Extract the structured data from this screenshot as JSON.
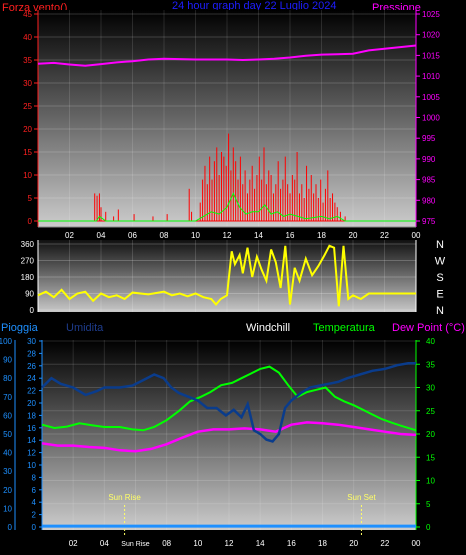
{
  "header": {
    "title": "24 hour graph day  22 Luglio 2024",
    "left_label": "Forza vento()",
    "right_label": "Pressione"
  },
  "colors": {
    "wind": "#ff0000",
    "gust": "#00ff00",
    "pressure": "#ff00ff",
    "direction": "#ffff00",
    "humidity": "#0a3c8c",
    "temperature": "#00ff00",
    "dewpoint": "#ff00ff",
    "rain": "#1e90ff",
    "title": "#1e1eff",
    "sun": "#ffff66"
  },
  "chart_data": [
    {
      "type": "line",
      "name": "wind-pressure",
      "x_range": [
        0,
        24
      ],
      "x_ticks": [
        "02",
        "04",
        "06",
        "08",
        "10",
        "12",
        "14",
        "16",
        "18",
        "20",
        "22",
        "00"
      ],
      "y_left": {
        "label": "Forza vento()",
        "range": [
          0,
          45
        ],
        "ticks": [
          0,
          5,
          10,
          15,
          20,
          25,
          30,
          35,
          40,
          45
        ]
      },
      "y_right": {
        "label": "Pressione",
        "range": [
          975,
          1025
        ],
        "ticks": [
          975,
          980,
          985,
          990,
          995,
          1000,
          1005,
          1010,
          1015,
          1020,
          1025
        ]
      },
      "pressure": [
        [
          0,
          1013
        ],
        [
          1,
          1013.2
        ],
        [
          2,
          1012.8
        ],
        [
          3,
          1012.5
        ],
        [
          4,
          1012.9
        ],
        [
          5,
          1013.3
        ],
        [
          6,
          1013.6
        ],
        [
          7,
          1014
        ],
        [
          8,
          1014.2
        ],
        [
          9,
          1014.1
        ],
        [
          10,
          1014
        ],
        [
          11,
          1014
        ],
        [
          12,
          1014
        ],
        [
          13,
          1013.9
        ],
        [
          14,
          1014
        ],
        [
          15,
          1014.2
        ],
        [
          16,
          1014.5
        ],
        [
          17,
          1014.9
        ],
        [
          18,
          1015.2
        ],
        [
          19,
          1015.3
        ],
        [
          20,
          1015.4
        ],
        [
          21,
          1016.2
        ],
        [
          22,
          1016.6
        ],
        [
          23,
          1017
        ],
        [
          24,
          1017.4
        ]
      ],
      "wind": [
        [
          3.6,
          6
        ],
        [
          3.75,
          5.5
        ],
        [
          3.9,
          6
        ],
        [
          4.0,
          3
        ],
        [
          4.3,
          2
        ],
        [
          4.8,
          1
        ],
        [
          5.1,
          2.5
        ],
        [
          6.1,
          1.5
        ],
        [
          7.3,
          1
        ],
        [
          8.2,
          1.5
        ],
        [
          9.6,
          7
        ],
        [
          9.75,
          2
        ],
        [
          10.3,
          4
        ],
        [
          10.45,
          9
        ],
        [
          10.6,
          12
        ],
        [
          10.75,
          8
        ],
        [
          10.9,
          14
        ],
        [
          11.05,
          9
        ],
        [
          11.2,
          13
        ],
        [
          11.35,
          16
        ],
        [
          11.5,
          10
        ],
        [
          11.65,
          15
        ],
        [
          11.8,
          14
        ],
        [
          11.95,
          12
        ],
        [
          12.1,
          19
        ],
        [
          12.25,
          11
        ],
        [
          12.4,
          16
        ],
        [
          12.55,
          13
        ],
        [
          12.7,
          9
        ],
        [
          12.85,
          14
        ],
        [
          13.0,
          8
        ],
        [
          13.15,
          11
        ],
        [
          13.3,
          6
        ],
        [
          13.45,
          9
        ],
        [
          13.6,
          12
        ],
        [
          13.75,
          7
        ],
        [
          13.9,
          10
        ],
        [
          14.05,
          14
        ],
        [
          14.2,
          9
        ],
        [
          14.35,
          16
        ],
        [
          14.5,
          8
        ],
        [
          14.65,
          11
        ],
        [
          14.8,
          10
        ],
        [
          14.95,
          6
        ],
        [
          15.1,
          8
        ],
        [
          15.25,
          13
        ],
        [
          15.4,
          7
        ],
        [
          15.55,
          9
        ],
        [
          15.7,
          14
        ],
        [
          15.85,
          8
        ],
        [
          16.0,
          6
        ],
        [
          16.15,
          10
        ],
        [
          16.3,
          9
        ],
        [
          16.45,
          15
        ],
        [
          16.6,
          6
        ],
        [
          16.75,
          8
        ],
        [
          16.9,
          5
        ],
        [
          17.05,
          12
        ],
        [
          17.2,
          7
        ],
        [
          17.35,
          10
        ],
        [
          17.5,
          6
        ],
        [
          17.65,
          8
        ],
        [
          17.8,
          5
        ],
        [
          17.95,
          9
        ],
        [
          18.1,
          4
        ],
        [
          18.25,
          7
        ],
        [
          18.4,
          11
        ],
        [
          18.55,
          5
        ],
        [
          18.7,
          6
        ],
        [
          18.85,
          4
        ],
        [
          19.0,
          3
        ],
        [
          19.2,
          2
        ],
        [
          19.5,
          1
        ]
      ],
      "gust": [
        [
          0,
          0
        ],
        [
          3.7,
          0
        ],
        [
          3.9,
          1
        ],
        [
          4.1,
          0.5
        ],
        [
          4.3,
          0
        ],
        [
          10,
          0
        ],
        [
          10.5,
          1
        ],
        [
          11,
          2
        ],
        [
          11.5,
          1.5
        ],
        [
          12,
          3
        ],
        [
          12.4,
          6
        ],
        [
          12.8,
          3
        ],
        [
          13.2,
          1.5
        ],
        [
          13.6,
          2
        ],
        [
          14,
          2
        ],
        [
          14.4,
          3.5
        ],
        [
          14.8,
          1.5
        ],
        [
          15.2,
          2
        ],
        [
          15.6,
          1
        ],
        [
          16,
          1.5
        ],
        [
          16.5,
          1
        ],
        [
          17,
          0.5
        ],
        [
          18,
          1
        ],
        [
          18.5,
          0.5
        ],
        [
          19,
          1
        ],
        [
          19.5,
          0
        ],
        [
          24,
          0
        ]
      ]
    },
    {
      "type": "line",
      "name": "wind-direction",
      "x_range": [
        0,
        24
      ],
      "y_left": {
        "range": [
          0,
          360
        ],
        "ticks": [
          0,
          90,
          180,
          270,
          360
        ]
      },
      "y_right": {
        "ticks": [
          "N",
          "W",
          "S",
          "E",
          "N"
        ]
      },
      "direction": [
        [
          0,
          80
        ],
        [
          0.5,
          100
        ],
        [
          1,
          70
        ],
        [
          1.5,
          110
        ],
        [
          2,
          60
        ],
        [
          2.5,
          90
        ],
        [
          3,
          100
        ],
        [
          3.5,
          50
        ],
        [
          4,
          90
        ],
        [
          4.5,
          70
        ],
        [
          5,
          80
        ],
        [
          5.5,
          60
        ],
        [
          6,
          95
        ],
        [
          7,
          85
        ],
        [
          8,
          100
        ],
        [
          8.5,
          80
        ],
        [
          9,
          90
        ],
        [
          9.5,
          75
        ],
        [
          10,
          90
        ],
        [
          10.5,
          70
        ],
        [
          11,
          60
        ],
        [
          11.3,
          30
        ],
        [
          11.6,
          60
        ],
        [
          12,
          80
        ],
        [
          12.3,
          320
        ],
        [
          12.5,
          250
        ],
        [
          12.8,
          300
        ],
        [
          13,
          200
        ],
        [
          13.3,
          340
        ],
        [
          13.6,
          180
        ],
        [
          13.9,
          290
        ],
        [
          14.2,
          220
        ],
        [
          14.5,
          160
        ],
        [
          14.8,
          330
        ],
        [
          15.1,
          260
        ],
        [
          15.4,
          120
        ],
        [
          15.7,
          350
        ],
        [
          16,
          30
        ],
        [
          16.3,
          230
        ],
        [
          16.6,
          160
        ],
        [
          17,
          280
        ],
        [
          17.4,
          190
        ],
        [
          17.8,
          240
        ],
        [
          18.2,
          300
        ],
        [
          18.5,
          350
        ],
        [
          18.8,
          340
        ],
        [
          19.1,
          20
        ],
        [
          19.4,
          350
        ],
        [
          19.7,
          60
        ],
        [
          20,
          80
        ],
        [
          20.5,
          60
        ],
        [
          21,
          90
        ],
        [
          22,
          90
        ],
        [
          23,
          90
        ],
        [
          24,
          90
        ]
      ]
    },
    {
      "type": "line",
      "name": "temperature-humidity",
      "x_range": [
        0,
        24
      ],
      "x_ticks": [
        "02",
        "04",
        "Sun Rise",
        "08",
        "10",
        "12",
        "14",
        "16",
        "18",
        "20",
        "22",
        "00"
      ],
      "y_far_left": {
        "label": "Pioggia",
        "range": [
          0,
          100
        ],
        "ticks": [
          0,
          10,
          20,
          30,
          40,
          50,
          60,
          70,
          80,
          90,
          100
        ]
      },
      "y_left": {
        "label": "Umidita",
        "range": [
          0,
          30
        ],
        "ticks": [
          0,
          2,
          4,
          6,
          8,
          10,
          12,
          14,
          16,
          18,
          20,
          22,
          24,
          26,
          28,
          30
        ]
      },
      "y_right": {
        "label": "Dew Point (°C)",
        "range": [
          0,
          40
        ],
        "ticks": [
          0,
          5,
          10,
          15,
          20,
          25,
          30,
          35,
          40
        ]
      },
      "legend": [
        "Windchill",
        "Temperatura",
        "Dew Point (°C)"
      ],
      "annotations": [
        {
          "x": 5.3,
          "label": "Sun Rise"
        },
        {
          "x": 20.5,
          "label": "Sun Set"
        }
      ],
      "humidity": [
        [
          0,
          75
        ],
        [
          0.6,
          80
        ],
        [
          1.2,
          77
        ],
        [
          2,
          75
        ],
        [
          2.8,
          71
        ],
        [
          3.5,
          73
        ],
        [
          4,
          75
        ],
        [
          5,
          75
        ],
        [
          5.8,
          76
        ],
        [
          6.5,
          79
        ],
        [
          7.2,
          82
        ],
        [
          7.8,
          80
        ],
        [
          8.3,
          75
        ],
        [
          8.8,
          72
        ],
        [
          9.4,
          70
        ],
        [
          10,
          68
        ],
        [
          10.6,
          64
        ],
        [
          11.2,
          64
        ],
        [
          11.8,
          60
        ],
        [
          12.3,
          63
        ],
        [
          12.8,
          59
        ],
        [
          13.2,
          66
        ],
        [
          13.6,
          52
        ],
        [
          14,
          50
        ],
        [
          14.4,
          47
        ],
        [
          14.8,
          46
        ],
        [
          15.2,
          50
        ],
        [
          15.6,
          64
        ],
        [
          16,
          68
        ],
        [
          16.6,
          72
        ],
        [
          17.2,
          75
        ],
        [
          17.8,
          76
        ],
        [
          18.4,
          77
        ],
        [
          19,
          78
        ],
        [
          19.6,
          80
        ],
        [
          20.4,
          82
        ],
        [
          21.2,
          84
        ],
        [
          22,
          85
        ],
        [
          22.8,
          87
        ],
        [
          23.5,
          88
        ],
        [
          24,
          88
        ]
      ],
      "temperature": [
        [
          0,
          22
        ],
        [
          0.8,
          21.3
        ],
        [
          1.6,
          21.6
        ],
        [
          2.4,
          22.3
        ],
        [
          3.2,
          21.9
        ],
        [
          4,
          21.5
        ],
        [
          5,
          21.5
        ],
        [
          5.8,
          21
        ],
        [
          6.5,
          20.8
        ],
        [
          7.2,
          21.5
        ],
        [
          8,
          23
        ],
        [
          8.8,
          25
        ],
        [
          9.5,
          27
        ],
        [
          10.2,
          28
        ],
        [
          10.8,
          29
        ],
        [
          11.5,
          30.5
        ],
        [
          12.2,
          31
        ],
        [
          12.8,
          32
        ],
        [
          13.4,
          33
        ],
        [
          14,
          34
        ],
        [
          14.6,
          34.5
        ],
        [
          15.2,
          33.2
        ],
        [
          15.8,
          30.5
        ],
        [
          16.4,
          28
        ],
        [
          17,
          29
        ],
        [
          17.6,
          29.5
        ],
        [
          18.2,
          30
        ],
        [
          18.8,
          28
        ],
        [
          19.4,
          27
        ],
        [
          20,
          26.2
        ],
        [
          20.6,
          25.2
        ],
        [
          21.2,
          24.2
        ],
        [
          21.8,
          23.2
        ],
        [
          22.4,
          22.5
        ],
        [
          23,
          21.8
        ],
        [
          23.6,
          21.2
        ],
        [
          24,
          20.8
        ]
      ],
      "dewpoint": [
        [
          0,
          18
        ],
        [
          1,
          17.5
        ],
        [
          2,
          17.5
        ],
        [
          3,
          17.2
        ],
        [
          4,
          17
        ],
        [
          5,
          16.5
        ],
        [
          6,
          16.3
        ],
        [
          7,
          16.8
        ],
        [
          8,
          17.8
        ],
        [
          9,
          19.2
        ],
        [
          10,
          20.5
        ],
        [
          11,
          21
        ],
        [
          12,
          21
        ],
        [
          13,
          21.2
        ],
        [
          14,
          21
        ],
        [
          15,
          20.5
        ],
        [
          16,
          22
        ],
        [
          17,
          22.5
        ],
        [
          18,
          22.3
        ],
        [
          19,
          22
        ],
        [
          20,
          21.5
        ],
        [
          21,
          21
        ],
        [
          22,
          20.5
        ],
        [
          23,
          20
        ],
        [
          24,
          19.8
        ]
      ],
      "rain": [
        [
          0,
          0.5
        ],
        [
          24,
          0.5
        ]
      ]
    }
  ]
}
